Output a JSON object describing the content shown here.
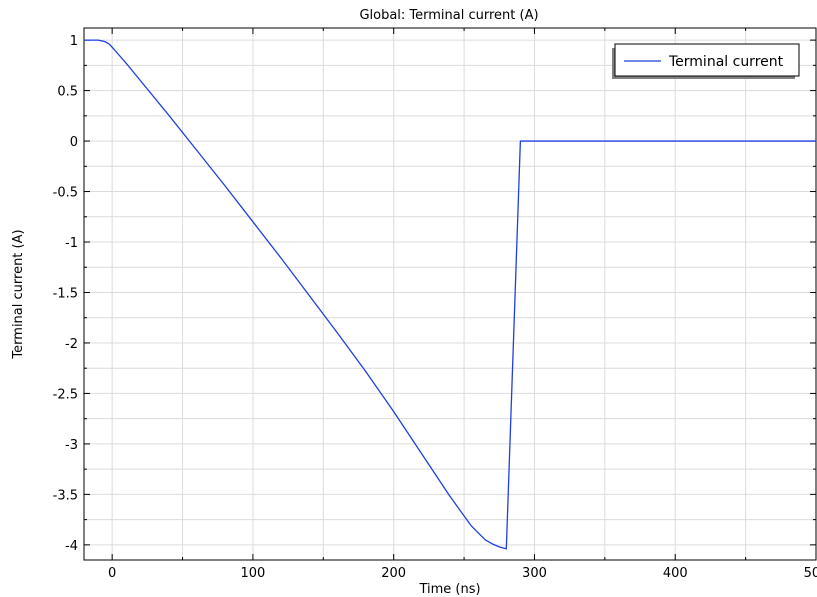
{
  "chart_data": {
    "type": "line",
    "title": "Global: Terminal current (A)",
    "xlabel": "Time (ns)",
    "ylabel": "Terminal current (A)",
    "xlim": [
      -20,
      500
    ],
    "ylim": [
      -4.15,
      1.12
    ],
    "x_ticks": [
      0,
      100,
      200,
      300,
      400,
      500
    ],
    "x_tick_labels": [
      "0",
      "100",
      "200",
      "300",
      "400",
      "500"
    ],
    "y_ticks": [
      1,
      0.5,
      0,
      -0.5,
      -1,
      -1.5,
      -2,
      -2.5,
      -3,
      -3.5,
      -4
    ],
    "y_tick_labels": [
      "1",
      "0.5",
      "0",
      "-0.5",
      "-1",
      "-1.5",
      "-2",
      "-2.5",
      "-3",
      "-3.5",
      "-4"
    ],
    "grid": true,
    "legend_position": "top-right",
    "series": [
      {
        "name": "Terminal current",
        "color": "#1f3fe0",
        "x": [
          -20,
          -10,
          -5,
          -2,
          0,
          5,
          10,
          20,
          40,
          60,
          80,
          100,
          120,
          140,
          160,
          180,
          200,
          220,
          240,
          255,
          265,
          270,
          275,
          280,
          290,
          300,
          350,
          400,
          450,
          500
        ],
        "y": [
          1.0,
          1.0,
          0.985,
          0.96,
          0.93,
          0.85,
          0.77,
          0.6,
          0.26,
          -0.09,
          -0.44,
          -0.8,
          -1.16,
          -1.53,
          -1.9,
          -2.28,
          -2.68,
          -3.1,
          -3.52,
          -3.81,
          -3.95,
          -3.99,
          -4.02,
          -4.04,
          0.0,
          0.0,
          0.0,
          0.0,
          0.0,
          0.0
        ]
      }
    ]
  }
}
